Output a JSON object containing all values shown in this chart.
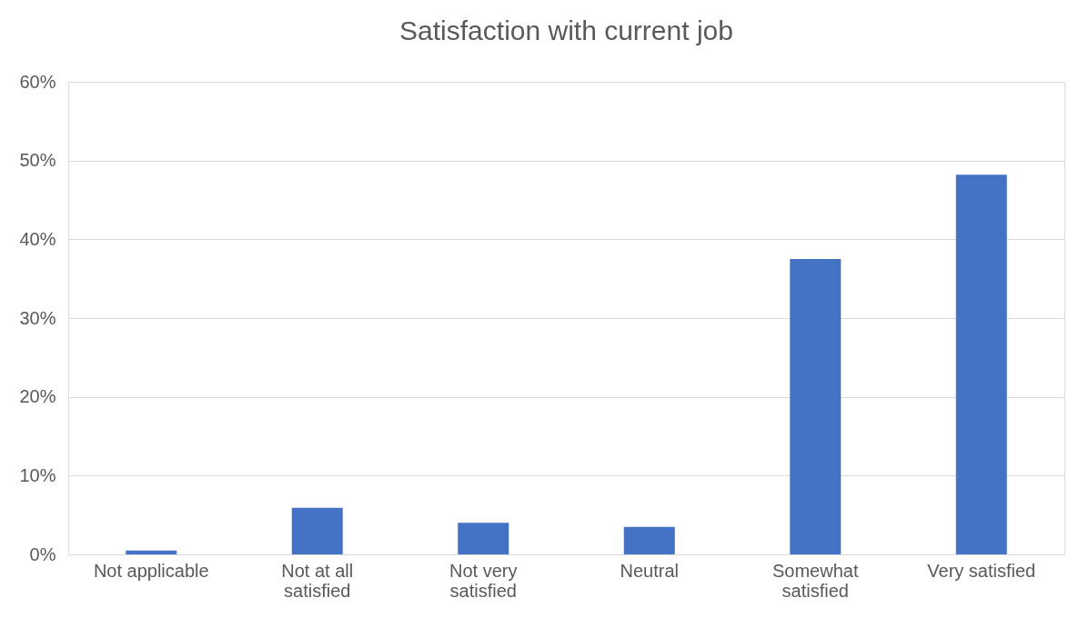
{
  "chart_data": {
    "type": "bar",
    "title": "Satisfaction with current job",
    "categories": [
      "Not applicable",
      "Not at all satisfied",
      "Not very satisfied",
      "Neutral",
      "Somewhat satisfied",
      "Very satisfied"
    ],
    "values": [
      0.5,
      5.9,
      4.0,
      3.5,
      37.5,
      48.2
    ],
    "color": "#4472c4",
    "ylim": [
      0,
      60
    ],
    "yticks": [
      {
        "value": 0,
        "label": "0%"
      },
      {
        "value": 10,
        "label": "10%"
      },
      {
        "value": 20,
        "label": "20%"
      },
      {
        "value": 30,
        "label": "30%"
      },
      {
        "value": 40,
        "label": "40%"
      },
      {
        "value": 50,
        "label": "50%"
      },
      {
        "value": 60,
        "label": "60%"
      }
    ],
    "grid": "y"
  }
}
